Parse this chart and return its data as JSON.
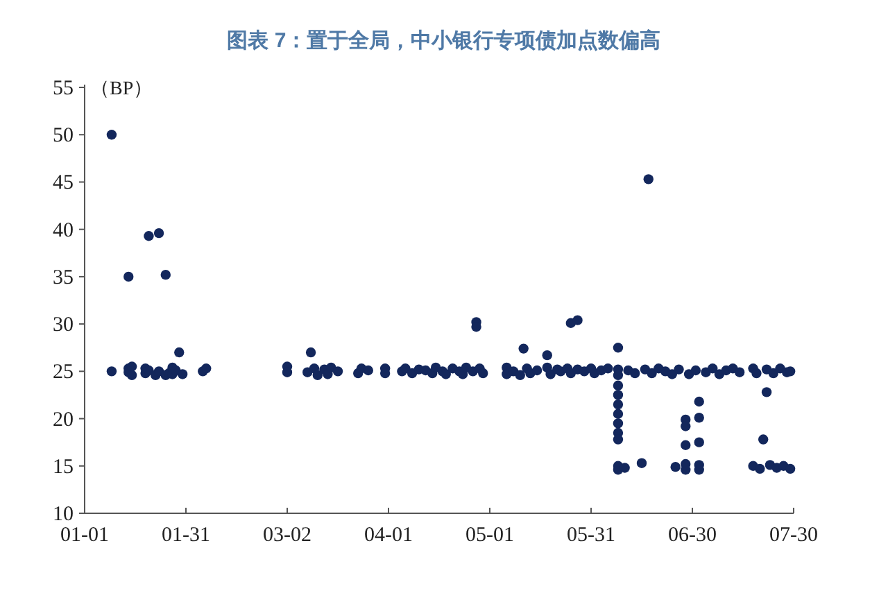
{
  "chart_data": {
    "type": "scatter",
    "title": "图表 7：置于全局，中小银行专项债加点数偏高",
    "ylabel": "（BP）",
    "marker": "circle",
    "xlim": [
      "--01-01",
      "--07-30"
    ],
    "xticks": [
      {
        "value": "--01-01",
        "label": "01-01"
      },
      {
        "value": "--01-31",
        "label": "01-31"
      },
      {
        "value": "--03-02",
        "label": "03-02"
      },
      {
        "value": "--04-01",
        "label": "04-01"
      },
      {
        "value": "--05-01",
        "label": "05-01"
      },
      {
        "value": "--05-31",
        "label": "05-31"
      },
      {
        "value": "--06-30",
        "label": "06-30"
      },
      {
        "value": "--07-30",
        "label": "07-30"
      }
    ],
    "ylim": [
      10,
      55
    ],
    "yticks": [
      10,
      15,
      20,
      25,
      30,
      35,
      40,
      45,
      50,
      55
    ],
    "series": [
      {
        "color": "#13275c",
        "x": [
          "--01-09",
          "--01-09",
          "--01-14",
          "--01-20",
          "--01-23",
          "--01-25",
          "--01-29",
          "--01-14",
          "--01-14",
          "--01-15",
          "--01-15",
          "--01-19",
          "--01-19",
          "--01-20",
          "--01-22",
          "--01-23",
          "--01-25",
          "--01-26",
          "--01-27",
          "--01-27",
          "--01-28",
          "--01-30",
          "--02-05",
          "--02-06",
          "--03-02",
          "--03-02",
          "--03-08",
          "--03-09",
          "--03-10",
          "--03-11",
          "--03-13",
          "--03-14",
          "--03-15",
          "--03-17",
          "--03-23",
          "--03-24",
          "--03-26",
          "--03-31",
          "--03-31",
          "--04-05",
          "--04-06",
          "--04-08",
          "--04-10",
          "--04-12",
          "--04-14",
          "--04-15",
          "--04-17",
          "--04-18",
          "--04-20",
          "--04-22",
          "--04-23",
          "--04-24",
          "--04-26",
          "--04-27",
          "--04-27",
          "--04-28",
          "--04-29",
          "--05-06",
          "--05-06",
          "--05-08",
          "--05-10",
          "--05-11",
          "--05-12",
          "--05-13",
          "--05-15",
          "--05-18",
          "--05-18",
          "--05-19",
          "--05-21",
          "--05-22",
          "--05-24",
          "--05-25",
          "--05-25",
          "--05-27",
          "--05-27",
          "--05-29",
          "--05-31",
          "--06-01",
          "--06-03",
          "--06-05",
          "--06-08",
          "--06-08",
          "--06-08",
          "--06-08",
          "--06-08",
          "--06-08",
          "--06-08",
          "--06-08",
          "--06-08",
          "--06-08",
          "--06-08",
          "--06-08",
          "--06-10",
          "--06-11",
          "--06-13",
          "--06-15",
          "--06-17",
          "--06-16",
          "--06-18",
          "--06-20",
          "--06-22",
          "--06-24",
          "--06-25",
          "--06-26",
          "--06-28",
          "--06-28",
          "--06-28",
          "--06-28",
          "--06-28",
          "--06-29",
          "--07-01",
          "--07-02",
          "--07-02",
          "--07-02",
          "--07-02",
          "--07-02",
          "--07-04",
          "--07-06",
          "--07-08",
          "--07-10",
          "--07-12",
          "--07-14",
          "--07-18",
          "--07-18",
          "--07-19",
          "--07-20",
          "--07-21",
          "--07-22",
          "--07-22",
          "--07-23",
          "--07-24",
          "--07-25",
          "--07-26",
          "--07-27",
          "--07-28",
          "--07-29",
          "--07-29"
        ],
        "values": [
          50,
          25,
          35,
          39.3,
          39.6,
          35.2,
          27,
          25.3,
          24.9,
          25.5,
          24.6,
          25.3,
          24.8,
          25.1,
          24.6,
          25,
          24.6,
          24.8,
          25.4,
          24.7,
          25.1,
          24.7,
          25,
          25.3,
          25.5,
          24.9,
          24.9,
          27,
          25.3,
          24.6,
          25.2,
          24.7,
          25.4,
          25,
          24.8,
          25.3,
          25.1,
          25.3,
          24.8,
          25,
          25.3,
          24.8,
          25.2,
          25.1,
          24.8,
          25.4,
          25,
          24.7,
          25.3,
          25,
          24.7,
          25.4,
          25,
          30.2,
          29.7,
          25.3,
          24.8,
          25.4,
          24.7,
          25,
          24.6,
          27.4,
          25.3,
          24.8,
          25.1,
          26.7,
          25.4,
          24.7,
          25.2,
          25,
          25.3,
          30.1,
          24.8,
          30.4,
          25.2,
          25,
          25.3,
          24.8,
          25.1,
          25.3,
          27.5,
          25.2,
          24.6,
          23.5,
          22.5,
          21.5,
          20.5,
          19.5,
          18.5,
          17.8,
          15,
          14.6,
          14.8,
          25.1,
          24.8,
          15.3,
          45.3,
          25.2,
          24.8,
          25.3,
          25,
          24.7,
          14.9,
          25.2,
          19.9,
          19.2,
          17.2,
          15.2,
          14.6,
          24.7,
          25.1,
          21.8,
          20.1,
          17.5,
          15.1,
          14.6,
          24.9,
          25.3,
          24.7,
          25.1,
          25.3,
          24.9,
          25.3,
          15,
          24.8,
          14.7,
          17.8,
          22.8,
          25.2,
          15.1,
          24.8,
          14.8,
          25.3,
          15,
          24.9,
          14.7,
          25
        ]
      }
    ]
  }
}
